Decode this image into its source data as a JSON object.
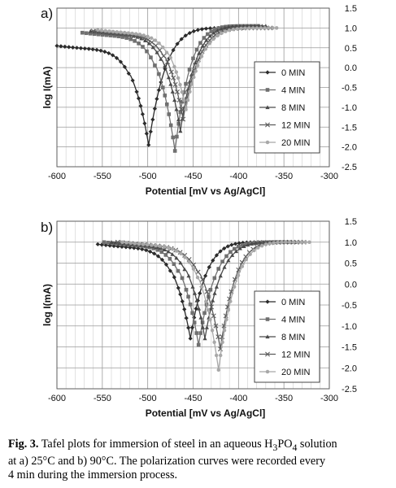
{
  "chart_data": [
    {
      "type": "line",
      "panel_label": "a)",
      "xlabel": "Potential [mV vs Ag/AgCl]",
      "ylabel": "log I(mA)",
      "xlim": [
        -600,
        -300
      ],
      "ylim": [
        -2.5,
        1.5
      ],
      "xticks": [
        "-600",
        "-550",
        "-500",
        "-450",
        "-400",
        "-350",
        "-300"
      ],
      "yticks": [
        "1.5",
        "1.0",
        "0.5",
        "0.0",
        "-0.5",
        "-1.0",
        "-1.5",
        "-2.0",
        "-2.5"
      ],
      "y_axis_side": "right",
      "grid": true,
      "legend_position": "right",
      "series": [
        {
          "name": "0 MIN",
          "marker": "diamond",
          "color": "#2b2b2b",
          "ecorr": -499,
          "min": -1.95,
          "start": [
            -600,
            0.55
          ],
          "end": [
            -395,
            1.0
          ]
        },
        {
          "name": "4 MIN",
          "marker": "square",
          "color": "#707070",
          "ecorr": -470,
          "min": -2.1,
          "start": [
            -572,
            0.88
          ],
          "end": [
            -378,
            1.05
          ]
        },
        {
          "name": "8 MIN",
          "marker": "triangle",
          "color": "#4a4a4a",
          "ecorr": -464,
          "min": -1.6,
          "start": [
            -563,
            0.92
          ],
          "end": [
            -370,
            1.05
          ]
        },
        {
          "name": "12 MIN",
          "marker": "x",
          "color": "#5c5c5c",
          "ecorr": -461,
          "min": -1.3,
          "start": [
            -560,
            0.92
          ],
          "end": [
            -365,
            1.0
          ]
        },
        {
          "name": "20 MIN",
          "marker": "circle",
          "color": "#a8a8a8",
          "ecorr": -458,
          "min": -1.05,
          "start": [
            -555,
            0.95
          ],
          "end": [
            -358,
            1.0
          ]
        }
      ]
    },
    {
      "type": "line",
      "panel_label": "b)",
      "xlabel": "Potential [mV vs Ag/AgCl]",
      "ylabel": "log I(mA)",
      "xlim": [
        -600,
        -300
      ],
      "ylim": [
        -2.5,
        1.5
      ],
      "xticks": [
        "-600",
        "-550",
        "-500",
        "-450",
        "-400",
        "-350",
        "-300"
      ],
      "yticks": [
        "1.5",
        "1.0",
        "0.5",
        "0.0",
        "-0.5",
        "-1.0",
        "-1.5",
        "-2.0",
        "-2.5"
      ],
      "y_axis_side": "right",
      "grid": true,
      "legend_position": "right",
      "series": [
        {
          "name": "0 MIN",
          "marker": "diamond",
          "color": "#2b2b2b",
          "ecorr": -453,
          "min": -1.3,
          "start": [
            -555,
            0.95
          ],
          "end": [
            -358,
            1.0
          ]
        },
        {
          "name": "4 MIN",
          "marker": "square",
          "color": "#707070",
          "ecorr": -444,
          "min": -1.45,
          "start": [
            -548,
            1.0
          ],
          "end": [
            -343,
            1.0
          ]
        },
        {
          "name": "8 MIN",
          "marker": "triangle",
          "color": "#4a4a4a",
          "ecorr": -437,
          "min": -1.3,
          "start": [
            -540,
            1.0
          ],
          "end": [
            -338,
            1.0
          ]
        },
        {
          "name": "12 MIN",
          "marker": "x",
          "color": "#5c5c5c",
          "ecorr": -420,
          "min": -1.55,
          "start": [
            -533,
            1.0
          ],
          "end": [
            -328,
            1.0
          ]
        },
        {
          "name": "20 MIN",
          "marker": "circle",
          "color": "#a8a8a8",
          "ecorr": -422,
          "min": -2.05,
          "start": [
            -528,
            1.0
          ],
          "end": [
            -322,
            1.0
          ]
        }
      ]
    }
  ],
  "caption": {
    "fig_label": "Fig. 3.",
    "line1_a": " Tafel plots for immersion of steel in an aqueous H",
    "sub3": "3",
    "mid": "PO",
    "sub4": "4",
    "line1_b": " solution",
    "line2": "at a) 25°C and b) 90°C. The polarization curves were recorded every",
    "line3": "4 min during the immersion process."
  }
}
